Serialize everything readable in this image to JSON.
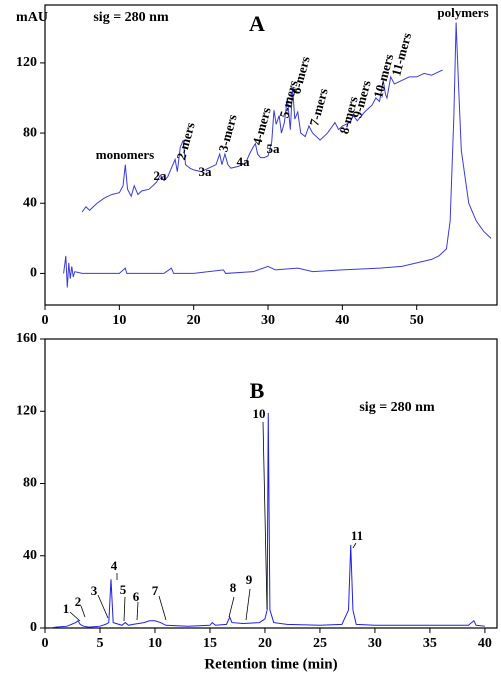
{
  "chart_data": [
    {
      "type": "line",
      "title": "A",
      "subtitle": "sig = 280 nm",
      "y_label": "mAU",
      "xlim": [
        0,
        60.8
      ],
      "ylim": [
        -18,
        153
      ],
      "xticks": [
        0,
        10,
        20,
        30,
        40,
        50
      ],
      "yticks": [
        0,
        40,
        80,
        120
      ],
      "annotations": [
        "monomers",
        "2a",
        "2-mers",
        "3a",
        "3-mers",
        "4a",
        "4-mers",
        "5a",
        "5-mers",
        "6-mers",
        "7-mers",
        "8-mers",
        "9-mers",
        "10-mers",
        "11-mers",
        "polymers"
      ],
      "series": [
        {
          "color": "#3b3bd9",
          "x": [
            5,
            5.5,
            6,
            7,
            8,
            9,
            10,
            10.5,
            10.8,
            11.1,
            11.6,
            12,
            12.5,
            13,
            14,
            15,
            15.5,
            16,
            16.5,
            17,
            17.5,
            17.8,
            18.2,
            18.6,
            18.9,
            19.5,
            20,
            21,
            22,
            23,
            23.5,
            23.8,
            24.2,
            24.6,
            25,
            26,
            27,
            27.5,
            28,
            28.3,
            28.6,
            29,
            29.5,
            30,
            30.5,
            30.8,
            31.1,
            31.5,
            31.8,
            32.2,
            32.6,
            33,
            33.3,
            33.6,
            34,
            34.4,
            35,
            35.5,
            36,
            37,
            38,
            39,
            39.5,
            40,
            41,
            41.5,
            42,
            43,
            44,
            44.5,
            45,
            45.5,
            45.8,
            46,
            46.5,
            47,
            48,
            49,
            50,
            51,
            52,
            53,
            53.5
          ],
          "values": [
            35,
            38,
            36,
            40,
            43,
            45,
            46,
            50,
            62,
            48,
            44,
            50,
            45,
            47,
            48,
            52,
            56,
            53,
            55,
            60,
            65,
            58,
            72,
            76,
            62,
            60,
            59,
            58,
            60,
            62,
            68,
            62,
            68,
            62,
            60,
            61,
            63,
            68,
            72,
            74,
            68,
            66,
            66,
            67,
            75,
            93,
            85,
            90,
            80,
            86,
            100,
            82,
            106,
            88,
            92,
            80,
            78,
            84,
            80,
            76,
            80,
            86,
            82,
            84,
            86,
            90,
            87,
            92,
            96,
            100,
            98,
            110,
            102,
            100,
            112,
            108,
            110,
            112,
            112,
            114,
            113,
            115,
            116
          ]
        },
        {
          "color": "#3b3bd9",
          "x": [
            2.5,
            2.8,
            3,
            3.2,
            3.4,
            3.6,
            3.8,
            4,
            5,
            10,
            10.8,
            11,
            16,
            17,
            17.3,
            20,
            24,
            24.3,
            28,
            30,
            31,
            34,
            36,
            40,
            45,
            48,
            50,
            52,
            53,
            54,
            54.5,
            55,
            55.3,
            55.6,
            56,
            57,
            58,
            59,
            60
          ],
          "values": [
            0,
            10,
            -8,
            6,
            -3,
            4,
            -2,
            1,
            0,
            0,
            3,
            0,
            0,
            3,
            0,
            0,
            2,
            0,
            1,
            4,
            2,
            3,
            1,
            2,
            3,
            4,
            6,
            8,
            10,
            14,
            30,
            90,
            143,
            110,
            70,
            40,
            30,
            24,
            20
          ]
        }
      ]
    },
    {
      "type": "line",
      "title": "B",
      "subtitle": "sig = 280 nm",
      "x_label": "Retention time (min)",
      "xlim": [
        0,
        41.1
      ],
      "ylim": [
        0,
        160
      ],
      "xticks": [
        0,
        5,
        10,
        15,
        20,
        25,
        30,
        35,
        40
      ],
      "yticks": [
        0,
        40,
        80,
        120,
        160
      ],
      "annotations": [
        "1",
        "2",
        "3",
        "4",
        "5",
        "6",
        "7",
        "8",
        "9",
        "10",
        "11"
      ],
      "series": [
        {
          "color": "#2020e0",
          "x": [
            0.5,
            1,
            2,
            2.8,
            3,
            3.2,
            3.5,
            4,
            5,
            5.5,
            5.8,
            6,
            6.2,
            7,
            7.3,
            7.6,
            8,
            9,
            9.5,
            10,
            10.5,
            11,
            13,
            15,
            15.2,
            15.5,
            16.5,
            16.8,
            17,
            18,
            19.5,
            20,
            20.2,
            20.3,
            20.45,
            20.8,
            22,
            25,
            27,
            27.6,
            27.8,
            28,
            28.3,
            30,
            35,
            38.5,
            39,
            39.2,
            40
          ],
          "values": [
            0,
            0.5,
            1,
            3,
            4,
            2,
            1,
            0.5,
            1,
            2,
            3,
            27,
            3,
            1.5,
            3,
            1.5,
            2,
            3,
            4,
            4,
            3,
            1.5,
            1,
            1.5,
            3,
            1.5,
            2,
            6,
            3,
            2.5,
            3,
            5,
            10,
            119,
            10,
            3,
            2,
            1.5,
            2,
            10,
            46,
            10,
            2,
            1.5,
            1.5,
            1.5,
            4,
            1.5,
            1
          ]
        }
      ]
    }
  ]
}
